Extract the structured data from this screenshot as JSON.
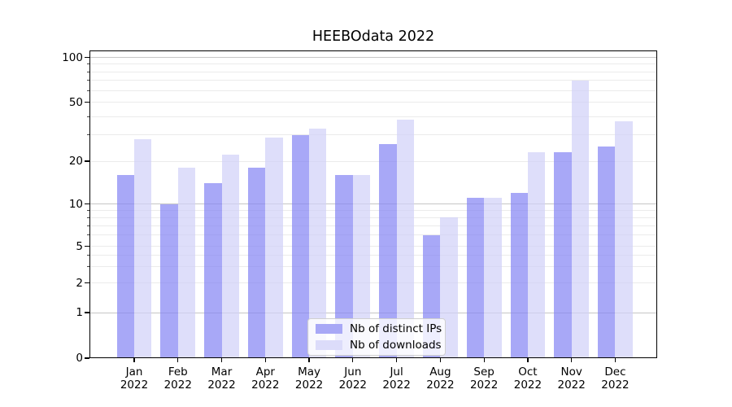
{
  "chart_data": {
    "type": "bar",
    "title": "HEEBOdata 2022",
    "categories": [
      "Jan 2022",
      "Feb 2022",
      "Mar 2022",
      "Apr 2022",
      "May 2022",
      "Jun 2022",
      "Jul 2022",
      "Aug 2022",
      "Sep 2022",
      "Oct 2022",
      "Nov 2022",
      "Dec 2022"
    ],
    "series": [
      {
        "name": "Nb of distinct IPs",
        "color": "#a8a8f6",
        "values": [
          16,
          10,
          14,
          18,
          30,
          16,
          26,
          6,
          11,
          12,
          23,
          25
        ]
      },
      {
        "name": "Nb of downloads",
        "color": "#dcdcfa",
        "values": [
          28,
          18,
          22,
          29,
          33,
          16,
          38,
          8,
          11,
          23,
          70,
          37
        ]
      }
    ],
    "yscale": "symlog",
    "ytick_labels": [
      0,
      1,
      2,
      5,
      10,
      20,
      50,
      100
    ],
    "yminor_ticks": [
      3,
      4,
      6,
      7,
      8,
      9,
      30,
      40,
      60,
      70,
      80,
      90
    ],
    "ylim": [
      0,
      110
    ],
    "xlabel": "",
    "ylabel": "",
    "grid": true,
    "legend_position": "lower center",
    "colors": {
      "bar_ips": "#a8a8f6",
      "bar_downloads": "#dcdcfa",
      "grid_major": "#c6c6c6",
      "grid_minor": "#ebebeb",
      "axis": "#000000"
    }
  }
}
